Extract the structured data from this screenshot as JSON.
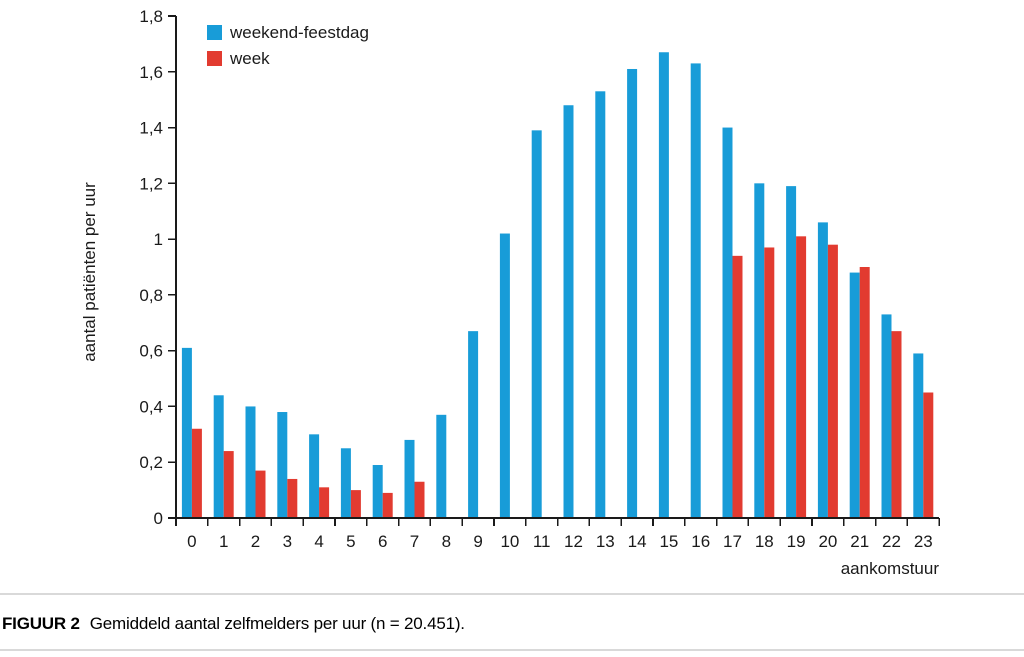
{
  "figure": {
    "label": "FIGUUR 2",
    "caption": "Gemiddeld aantal zelfmelders per uur (n = 20.451)."
  },
  "chart_data": {
    "type": "bar",
    "title": "",
    "xlabel": "aankomstuur",
    "ylabel": "aantal patiënten per uur",
    "x": [
      0,
      1,
      2,
      3,
      4,
      5,
      6,
      7,
      8,
      9,
      10,
      11,
      12,
      13,
      14,
      15,
      16,
      17,
      18,
      19,
      20,
      21,
      22,
      23
    ],
    "series": [
      {
        "name": "weekend-feestdag",
        "color": "#189CD8",
        "values": [
          0.61,
          0.44,
          0.4,
          0.38,
          0.3,
          0.25,
          0.19,
          0.28,
          0.37,
          0.67,
          1.02,
          1.39,
          1.48,
          1.53,
          1.61,
          1.67,
          1.63,
          1.4,
          1.2,
          1.19,
          1.06,
          0.88,
          0.73,
          0.59
        ]
      },
      {
        "name": "week",
        "color": "#E23B30",
        "values": [
          0.32,
          0.24,
          0.17,
          0.14,
          0.11,
          0.1,
          0.09,
          0.13,
          null,
          null,
          null,
          null,
          null,
          null,
          null,
          null,
          null,
          0.94,
          0.97,
          1.01,
          0.98,
          0.9,
          0.67,
          0.45
        ]
      }
    ],
    "ylim": [
      0,
      1.8
    ],
    "ytick_values": [
      0,
      0.2,
      0.4,
      0.6,
      0.8,
      1,
      1.2,
      1.4,
      1.6,
      1.8
    ],
    "ytick_labels": [
      "0",
      "0,2",
      "0,4",
      "0,6",
      "0,8",
      "1",
      "1,2",
      "1,4",
      "1,6",
      "1,8"
    ],
    "grid": false,
    "legend_position": "top-left",
    "axis_color": "#1a1a1a"
  }
}
